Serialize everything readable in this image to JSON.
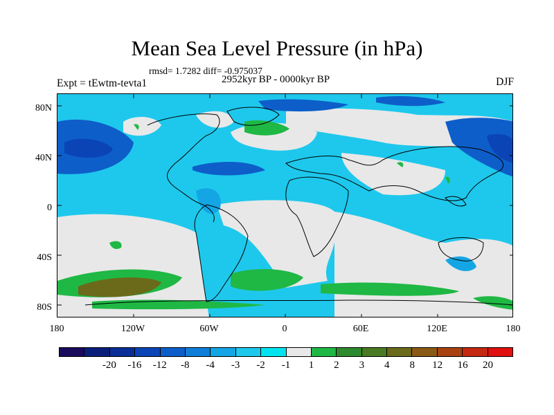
{
  "title": "Mean Sea Level Pressure (in hPa)",
  "stats_text": "rmsd= 1.7282 diff= -0.975037",
  "period_text": "2952kyr BP - 0000kyr BP",
  "experiment_text": "Expt = tEwtm-tevta1",
  "season_text": "DJF",
  "axes": {
    "y_ticks": [
      "80N",
      "40N",
      "0",
      "40S",
      "80S"
    ],
    "x_ticks": [
      "180",
      "120W",
      "60W",
      "0",
      "60E",
      "120E",
      "180"
    ]
  },
  "colorbar": {
    "colors": [
      "#1a0a5c",
      "#0a1e7a",
      "#0a2e96",
      "#0b44b4",
      "#0d5ec9",
      "#0f7ed8",
      "#14a6e4",
      "#1ec8ec",
      "#00e4f0",
      "#e8e8e8",
      "#1fb844",
      "#2e8a2e",
      "#4a7a24",
      "#6a6a1a",
      "#8a5a14",
      "#a84210",
      "#c42810",
      "#e01010"
    ],
    "labels": [
      "-20",
      "-16",
      "-12",
      "-8",
      "-4",
      "-3",
      "-2",
      "-1",
      "1",
      "2",
      "3",
      "4",
      "8",
      "12",
      "16",
      "20"
    ]
  },
  "map_colors": {
    "ocean_light": "#1ec8ec",
    "ocean_mid": "#14a6e4",
    "ocean_dark": "#0d5ec9",
    "ocean_deep": "#0b44b4",
    "neutral": "#e8e8e8",
    "green": "#1fb844",
    "olive": "#6a6a1a"
  }
}
